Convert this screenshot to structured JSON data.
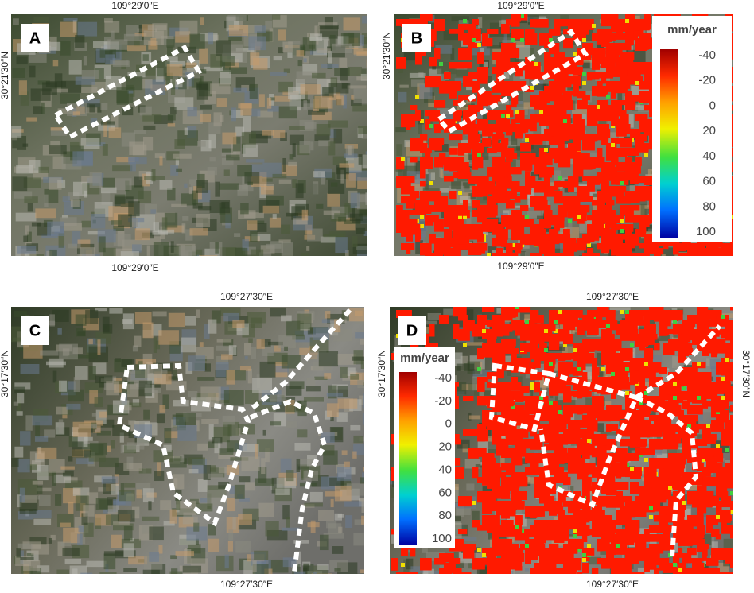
{
  "panels": [
    {
      "label": "A",
      "top": "109°29′0″E",
      "bottom": "109°29′0″E",
      "left": "30°21′30″N"
    },
    {
      "label": "B",
      "top": "109°29′0″E",
      "bottom": "109°29′0″E",
      "left": "30°21′30″N",
      "legend": {
        "title": "mm/year",
        "ticks": [
          -40,
          -20,
          0,
          20,
          40,
          60,
          80,
          100
        ]
      }
    },
    {
      "label": "C",
      "top": "109°27′30″E",
      "bottom": "109°27′30″E",
      "left": "30°17′30″N"
    },
    {
      "label": "D",
      "top": "109°27′30″E",
      "bottom": "109°27′30″E",
      "left": "30°17′30″N",
      "right": "30°17′30″N",
      "legend": {
        "title": "mm/year",
        "ticks": [
          -40,
          -20,
          0,
          20,
          40,
          60,
          80,
          100
        ]
      }
    }
  ]
}
